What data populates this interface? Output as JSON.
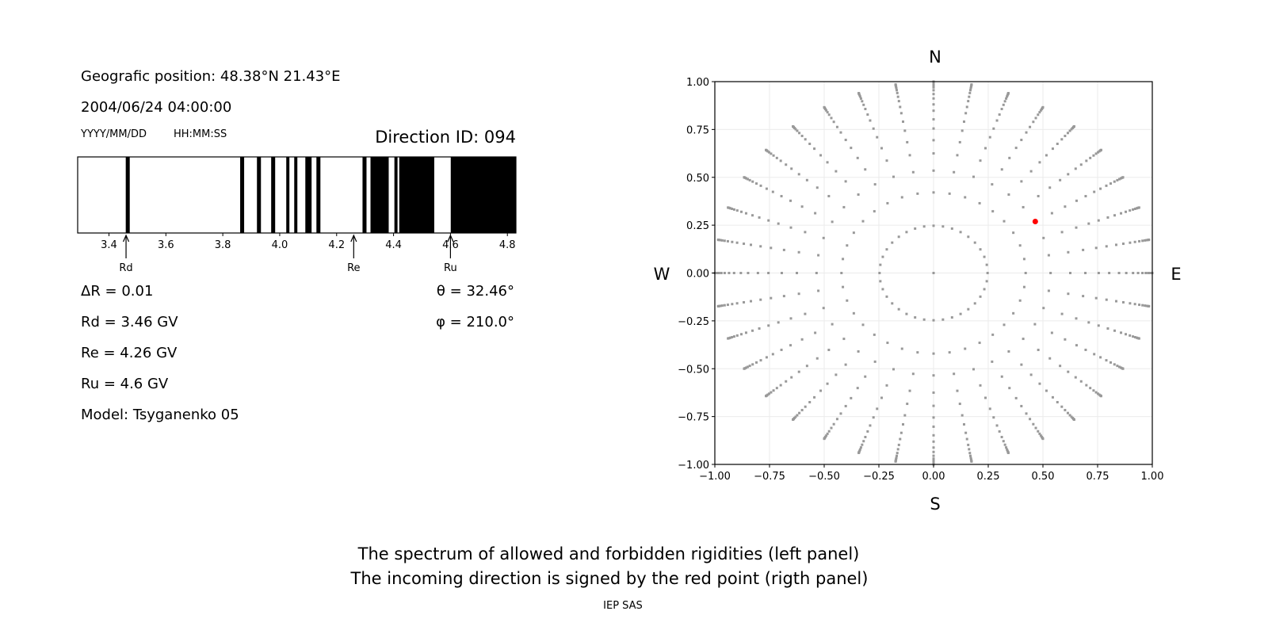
{
  "left_panel": {
    "position_text": "Geografic position: 48.38°N 21.43°E",
    "datetime_text": "2004/06/24 04:00:00",
    "date_format_label": "YYYY/MM/DD",
    "time_format_label": "HH:MM:SS",
    "direction_id": "Direction ID: 094",
    "delta_r": "ΔR = 0.01",
    "theta": "θ = 32.46°",
    "phi": "φ = 210.0°",
    "rd_text": "Rd = 3.46 GV",
    "re_text": "Re = 4.26 GV",
    "ru_text": "Ru = 4.6 GV",
    "model_text": "Model: Tsyganenko 05"
  },
  "chart_data": [
    {
      "type": "spectrum",
      "xlim": [
        3.29,
        4.83
      ],
      "x_ticks": [
        "3.4",
        "3.6",
        "3.8",
        "4.0",
        "4.2",
        "4.4",
        "4.6",
        "4.8"
      ],
      "tick_values": [
        3.4,
        3.6,
        3.8,
        4.0,
        4.2,
        4.4,
        4.6,
        4.8
      ],
      "allowed_color": "#ffffff",
      "forbidden_color": "#000000",
      "forbidden_bands": [
        [
          3.459,
          3.473
        ],
        [
          3.861,
          3.875
        ],
        [
          3.92,
          3.934
        ],
        [
          3.97,
          3.984
        ],
        [
          4.023,
          4.034
        ],
        [
          4.051,
          4.062
        ],
        [
          4.09,
          4.112
        ],
        [
          4.129,
          4.143
        ],
        [
          4.291,
          4.305
        ],
        [
          4.319,
          4.383
        ],
        [
          4.403,
          4.414
        ],
        [
          4.42,
          4.543
        ],
        [
          4.601,
          4.83
        ]
      ],
      "markers": [
        {
          "label": "Rd",
          "value": 3.46
        },
        {
          "label": "Re",
          "value": 4.26
        },
        {
          "label": "Ru",
          "value": 4.6
        }
      ]
    },
    {
      "type": "scatter",
      "xlim": [
        -1,
        1
      ],
      "ylim": [
        -1,
        1
      ],
      "grid": true,
      "x_ticks": [
        "−1.00",
        "−0.75",
        "−0.50",
        "−0.25",
        "0.00",
        "0.25",
        "0.50",
        "0.75",
        "1.00"
      ],
      "y_ticks": [
        "−1.00",
        "−0.75",
        "−0.50",
        "−0.25",
        "0.00",
        "0.25",
        "0.50",
        "0.75",
        "1.00"
      ],
      "tick_values": [
        -1,
        -0.75,
        -0.5,
        -0.25,
        0,
        0.25,
        0.5,
        0.75,
        1
      ],
      "compass": {
        "north": "N",
        "south": "S",
        "west": "W",
        "east": "E"
      },
      "grid_points": {
        "azimuth_step_deg": 10,
        "radii": [
          0.247,
          0.421,
          0.535,
          0.625,
          0.694,
          0.755,
          0.803,
          0.848,
          0.881,
          0.912,
          0.935,
          0.955,
          0.97,
          0.981,
          0.989,
          0.995,
          0.999,
          1.0
        ],
        "center_point": true,
        "color": "#999999"
      },
      "incoming_direction": {
        "x": 0.465,
        "y": 0.269,
        "color": "#ff0000"
      }
    }
  ],
  "caption": {
    "line1": "The spectrum of allowed and forbidden rigidities (left panel)",
    "line2": "The incoming direction is signed by the red point (rigth panel)",
    "credit": "IEP SAS"
  }
}
